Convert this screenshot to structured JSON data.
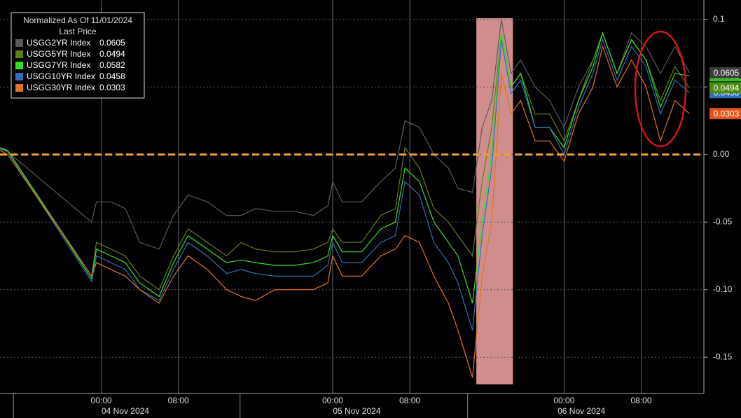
{
  "chart_data": {
    "type": "line",
    "legend_title": "Normalized As Of 11/01/2024",
    "legend_subtitle": "Last Price",
    "x": [
      -10.5,
      -9.7,
      -1,
      -0.5,
      1,
      2.5,
      4,
      6,
      7.5,
      9,
      11,
      13,
      14.5,
      16,
      18,
      20,
      22,
      23.5,
      24,
      25,
      27,
      29,
      30.5,
      31.5,
      33,
      34.5,
      36,
      37,
      38.5,
      39.5,
      40.5,
      41.5,
      42.5,
      43.5,
      45,
      46.5,
      48,
      49.5,
      51,
      52,
      53.5,
      55,
      56.5,
      58,
      59.5,
      61
    ],
    "series": [
      {
        "name": "USGG2YR Index",
        "color": "#5a5a5a",
        "label_color": "#3c3c3c",
        "values": [
          0.005,
          0.002,
          -0.05,
          -0.035,
          -0.035,
          -0.04,
          -0.065,
          -0.07,
          -0.045,
          -0.03,
          -0.035,
          -0.045,
          -0.045,
          -0.04,
          -0.042,
          -0.042,
          -0.045,
          -0.038,
          -0.02,
          -0.035,
          -0.035,
          -0.02,
          -0.01,
          0.025,
          0.02,
          0.0,
          -0.01,
          -0.025,
          -0.028,
          0.02,
          0.04,
          0.1,
          0.06,
          0.07,
          0.05,
          0.04,
          0.02,
          0.05,
          0.07,
          0.09,
          0.06,
          0.09,
          0.08,
          0.06,
          0.08,
          0.0605
        ]
      },
      {
        "name": "USGG5YR Index",
        "color": "#5d7f1c",
        "label_color": "#4f8a18",
        "values": [
          0.005,
          0.003,
          -0.09,
          -0.065,
          -0.07,
          -0.075,
          -0.09,
          -0.1,
          -0.075,
          -0.055,
          -0.065,
          -0.075,
          -0.065,
          -0.07,
          -0.072,
          -0.072,
          -0.07,
          -0.065,
          -0.055,
          -0.065,
          -0.065,
          -0.045,
          -0.04,
          0.005,
          -0.01,
          -0.04,
          -0.05,
          -0.06,
          -0.075,
          -0.02,
          0.02,
          0.09,
          0.05,
          0.06,
          0.03,
          0.03,
          0.01,
          0.04,
          0.07,
          0.09,
          0.06,
          0.085,
          0.07,
          0.04,
          0.065,
          0.0494
        ]
      },
      {
        "name": "USGG7YR Index",
        "color": "#33e022",
        "label_color": "#2fc21f",
        "values": [
          0.005,
          0.003,
          -0.092,
          -0.07,
          -0.075,
          -0.08,
          -0.095,
          -0.105,
          -0.08,
          -0.06,
          -0.07,
          -0.08,
          -0.078,
          -0.08,
          -0.082,
          -0.082,
          -0.08,
          -0.075,
          -0.06,
          -0.072,
          -0.072,
          -0.055,
          -0.05,
          -0.01,
          -0.02,
          -0.05,
          -0.065,
          -0.075,
          -0.11,
          -0.05,
          0.0,
          0.09,
          0.05,
          0.06,
          0.02,
          0.02,
          0.005,
          0.04,
          0.065,
          0.09,
          0.06,
          0.085,
          0.07,
          0.035,
          0.06,
          0.0582
        ]
      },
      {
        "name": "USGG10YR Index",
        "color": "#2f6fb4",
        "label_color": "#2f6fb4",
        "values": [
          0.004,
          0.002,
          -0.094,
          -0.075,
          -0.08,
          -0.085,
          -0.1,
          -0.108,
          -0.085,
          -0.065,
          -0.075,
          -0.088,
          -0.085,
          -0.088,
          -0.09,
          -0.09,
          -0.09,
          -0.082,
          -0.065,
          -0.08,
          -0.08,
          -0.065,
          -0.06,
          -0.02,
          -0.03,
          -0.065,
          -0.08,
          -0.095,
          -0.13,
          -0.06,
          -0.01,
          0.085,
          0.045,
          0.055,
          0.02,
          0.02,
          0.0,
          0.035,
          0.06,
          0.085,
          0.055,
          0.08,
          0.065,
          0.03,
          0.055,
          0.0458
        ]
      },
      {
        "name": "USGG30YR Index",
        "color": "#e0741e",
        "label_color": "#e2521a",
        "values": [
          0.003,
          0.0,
          -0.09,
          -0.08,
          -0.085,
          -0.09,
          -0.1,
          -0.11,
          -0.09,
          -0.075,
          -0.085,
          -0.1,
          -0.105,
          -0.108,
          -0.1,
          -0.1,
          -0.1,
          -0.095,
          -0.075,
          -0.09,
          -0.09,
          -0.075,
          -0.07,
          -0.06,
          -0.065,
          -0.09,
          -0.11,
          -0.13,
          -0.165,
          -0.09,
          -0.05,
          0.06,
          0.03,
          0.04,
          0.01,
          0.01,
          -0.005,
          0.03,
          0.05,
          0.08,
          0.05,
          0.07,
          0.05,
          0.01,
          0.04,
          0.0303
        ]
      }
    ],
    "xlim": [
      -10.5,
      62.5
    ],
    "xticks": [
      {
        "value": 0,
        "label": "00:00"
      },
      {
        "value": 8,
        "label": "08:00"
      },
      {
        "value": 24,
        "label": "00:00"
      },
      {
        "value": 32,
        "label": "08:00"
      },
      {
        "value": 48,
        "label": "00:00"
      },
      {
        "value": 56,
        "label": "08:00"
      }
    ],
    "date_labels": [
      {
        "value": 2.5,
        "label": "04 Nov 2024"
      },
      {
        "value": 26.5,
        "label": "05 Nov 2024"
      },
      {
        "value": 49.8,
        "label": "06 Nov 2024"
      }
    ],
    "day_boundaries": [
      -9.1,
      14.4,
      38
    ],
    "ylim": [
      -0.168,
      0.105
    ],
    "yticks": [
      {
        "value": -0.15,
        "label": "-0.15"
      },
      {
        "value": -0.1,
        "label": "-0.10"
      },
      {
        "value": -0.05,
        "label": "-0.05"
      },
      {
        "value": 0,
        "label": "0.00"
      },
      {
        "value": 0.05,
        "label": "0.05"
      },
      0.1
    ],
    "shaded_region": {
      "x": [
        38.9,
        42.7
      ],
      "color": "#f4a6a6"
    },
    "reference_line": {
      "y": 0,
      "color": "#f0a030"
    },
    "grid": true
  }
}
